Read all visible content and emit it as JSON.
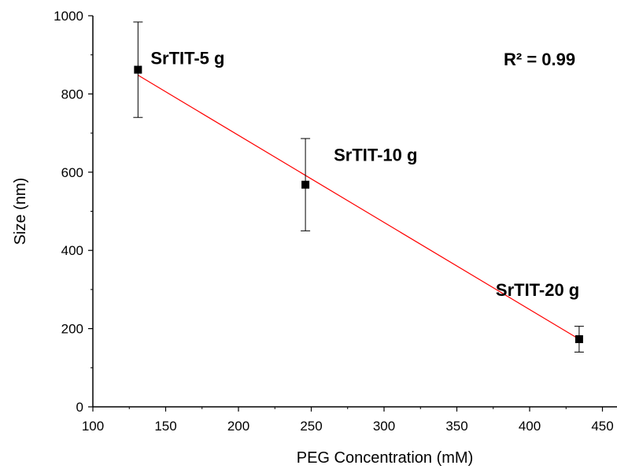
{
  "chart_data": {
    "type": "scatter",
    "xlabel": "PEG Concentration (mM)",
    "ylabel": "Size (nm)",
    "xlim": [
      100,
      460
    ],
    "ylim": [
      0,
      1000
    ],
    "xticks": [
      "100",
      "150",
      "200",
      "250",
      "300",
      "350",
      "400",
      "450"
    ],
    "yticks": [
      "0",
      "200",
      "400",
      "600",
      "800",
      "1000"
    ],
    "points": [
      {
        "x": 131,
        "y": 862,
        "err": 122,
        "label": "SrTIT-5 g"
      },
      {
        "x": 246,
        "y": 568,
        "err": 118,
        "label": "SrTIT-10 g"
      },
      {
        "x": 434,
        "y": 173,
        "err": 33,
        "label": "SrTIT-20 g"
      }
    ],
    "fit_line": {
      "x": [
        131,
        434
      ],
      "y": [
        848,
        173
      ],
      "color": "#ff0000"
    },
    "annotation": {
      "text": "R² = 0.99"
    },
    "grid": false,
    "legend": "none",
    "marker_color": "#000000"
  }
}
